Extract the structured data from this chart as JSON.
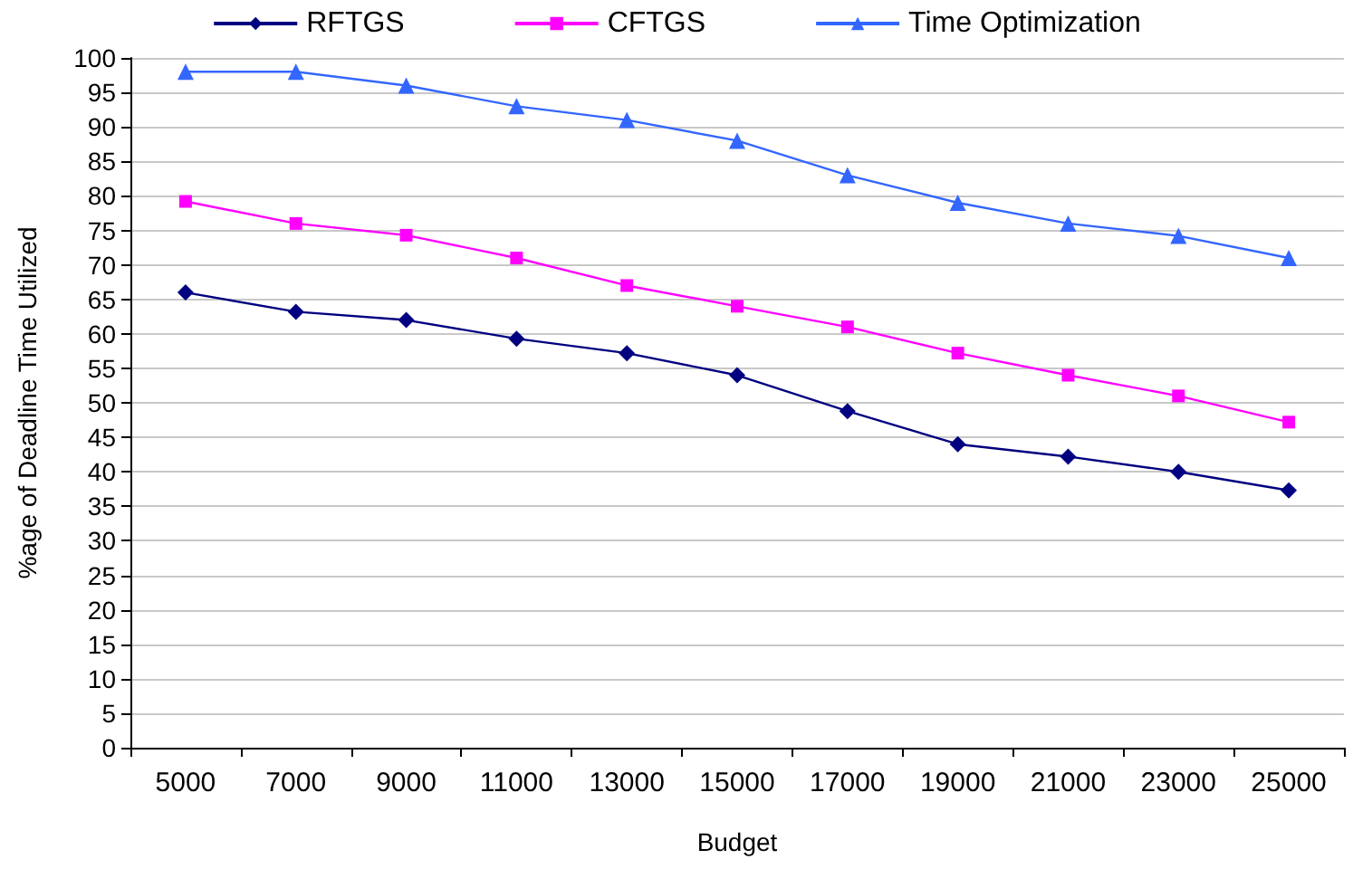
{
  "chart_data": {
    "type": "line",
    "xlabel": "Budget",
    "ylabel": "%age of Deadline Time Utilized",
    "categories": [
      "5000",
      "7000",
      "9000",
      "11000",
      "13000",
      "15000",
      "17000",
      "19000",
      "21000",
      "23000",
      "25000"
    ],
    "series": [
      {
        "name": "RFTGS",
        "color": "#000080",
        "marker": "diamond",
        "values": [
          66,
          63.2,
          62,
          59.3,
          57.2,
          54,
          48.8,
          44,
          42.2,
          40,
          37.3
        ]
      },
      {
        "name": "CFTGS",
        "color": "#ff00ff",
        "marker": "square",
        "values": [
          79.2,
          76,
          74.3,
          71,
          67,
          64,
          61,
          57.2,
          54,
          51,
          47.2
        ]
      },
      {
        "name": "Time Optimization",
        "color": "#3366ff",
        "marker": "triangle",
        "values": [
          98,
          98,
          96,
          93,
          91,
          88,
          83,
          79,
          76,
          74.2,
          71
        ]
      }
    ],
    "ylim": [
      0,
      100
    ],
    "yticks": [
      0,
      5,
      10,
      15,
      20,
      25,
      30,
      35,
      40,
      45,
      50,
      55,
      60,
      65,
      70,
      75,
      80,
      85,
      90,
      95,
      100
    ],
    "grid": "y",
    "legend": "top",
    "line_style": "solid"
  }
}
